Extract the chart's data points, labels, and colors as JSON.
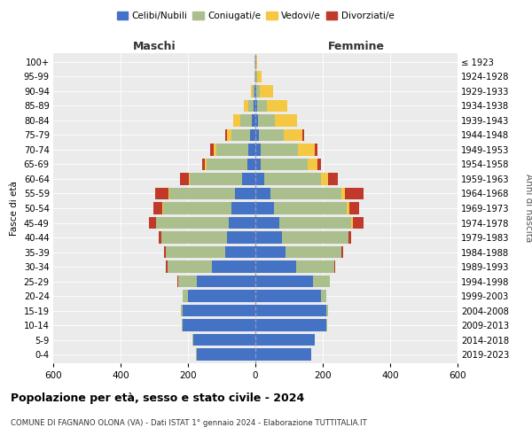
{
  "age_groups": [
    "0-4",
    "5-9",
    "10-14",
    "15-19",
    "20-24",
    "25-29",
    "30-34",
    "35-39",
    "40-44",
    "45-49",
    "50-54",
    "55-59",
    "60-64",
    "65-69",
    "70-74",
    "75-79",
    "80-84",
    "85-89",
    "90-94",
    "95-99",
    "100+"
  ],
  "birth_years": [
    "2019-2023",
    "2014-2018",
    "2009-2013",
    "2004-2008",
    "1999-2003",
    "1994-1998",
    "1989-1993",
    "1984-1988",
    "1979-1983",
    "1974-1978",
    "1969-1973",
    "1964-1968",
    "1959-1963",
    "1954-1958",
    "1949-1953",
    "1944-1948",
    "1939-1943",
    "1934-1938",
    "1929-1933",
    "1924-1928",
    "≤ 1923"
  ],
  "maschi": {
    "celibi": [
      175,
      185,
      215,
      215,
      200,
      175,
      130,
      90,
      85,
      80,
      70,
      60,
      40,
      25,
      20,
      15,
      10,
      5,
      2,
      1,
      1
    ],
    "coniugati": [
      1,
      1,
      3,
      5,
      15,
      55,
      130,
      175,
      195,
      215,
      205,
      195,
      155,
      120,
      95,
      55,
      35,
      15,
      5,
      1,
      1
    ],
    "vedovi": [
      0,
      0,
      0,
      0,
      0,
      0,
      0,
      0,
      0,
      1,
      2,
      2,
      3,
      5,
      10,
      15,
      20,
      15,
      5,
      0,
      0
    ],
    "divorziati": [
      0,
      0,
      0,
      0,
      0,
      2,
      5,
      5,
      8,
      20,
      25,
      40,
      25,
      8,
      8,
      5,
      0,
      0,
      0,
      0,
      0
    ]
  },
  "femmine": {
    "nubili": [
      165,
      175,
      210,
      210,
      195,
      170,
      120,
      90,
      80,
      70,
      55,
      45,
      25,
      15,
      15,
      10,
      8,
      5,
      2,
      1,
      1
    ],
    "coniugate": [
      1,
      1,
      3,
      5,
      15,
      50,
      115,
      165,
      195,
      215,
      215,
      210,
      170,
      140,
      110,
      75,
      50,
      30,
      10,
      3,
      1
    ],
    "vedove": [
      0,
      0,
      0,
      0,
      0,
      0,
      0,
      1,
      2,
      5,
      8,
      10,
      20,
      30,
      50,
      55,
      65,
      60,
      40,
      15,
      2
    ],
    "divorziate": [
      0,
      0,
      0,
      0,
      0,
      1,
      3,
      5,
      8,
      30,
      30,
      55,
      30,
      10,
      8,
      5,
      0,
      0,
      0,
      0,
      0
    ]
  },
  "colors": {
    "celibi": "#4472C4",
    "coniugati": "#AABF8C",
    "vedovi": "#F4C842",
    "divorziati": "#C0392B"
  },
  "xlim": 600,
  "title": "Popolazione per età, sesso e stato civile - 2024",
  "subtitle": "COMUNE DI FAGNANO OLONA (VA) - Dati ISTAT 1° gennaio 2024 - Elaborazione TUTTITALIA.IT",
  "xlabel_left": "Maschi",
  "xlabel_right": "Femmine",
  "ylabel_left": "Fasce di età",
  "ylabel_right": "Anni di nascita",
  "bg_color": "#ebebeb"
}
